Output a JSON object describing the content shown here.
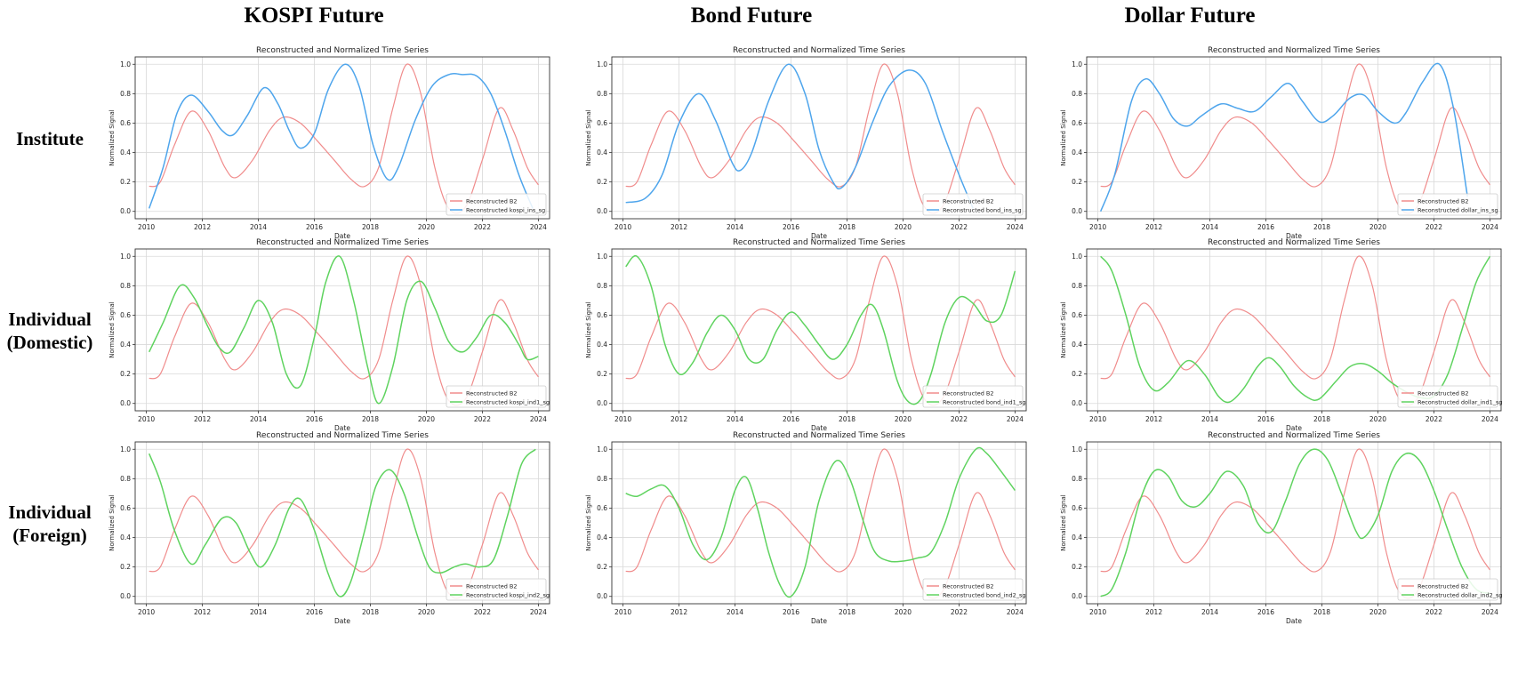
{
  "column_titles": [
    "KOSPI Future",
    "Bond Future",
    "Dollar Future"
  ],
  "row_labels": [
    {
      "line1": "Institute",
      "line2": ""
    },
    {
      "line1": "Individual",
      "line2": "(Domestic)"
    },
    {
      "line1": "Individual",
      "line2": "(Foreign)"
    }
  ],
  "colors": {
    "b2": "#f08c8c",
    "institute": "#4ea5ec",
    "individual": "#5fd35f"
  },
  "shared": {
    "title": "Reconstructed and Normalized Time Series",
    "xlabel": "Date",
    "ylabel": "Normalized Signal",
    "xticks": [
      2010,
      2012,
      2014,
      2016,
      2018,
      2020,
      2022,
      2024
    ],
    "yticks": [
      0.0,
      0.2,
      0.4,
      0.6,
      0.8,
      1.0
    ],
    "xlim": [
      2009.6,
      2024.4
    ],
    "ylim": [
      -0.05,
      1.05
    ],
    "b2_series": {
      "name": "Reconstructed B2",
      "x": [
        2010.1,
        2010.5,
        2011.0,
        2011.6,
        2012.2,
        2012.8,
        2013.2,
        2013.8,
        2014.4,
        2014.9,
        2015.5,
        2016.1,
        2016.7,
        2017.3,
        2017.8,
        2018.3,
        2018.8,
        2019.3,
        2019.8,
        2020.3,
        2020.8,
        2021.4,
        2022.0,
        2022.6,
        2023.1,
        2023.6,
        2024.0
      ],
      "y": [
        0.17,
        0.2,
        0.45,
        0.68,
        0.55,
        0.3,
        0.23,
        0.35,
        0.55,
        0.64,
        0.6,
        0.48,
        0.35,
        0.22,
        0.17,
        0.3,
        0.7,
        1.0,
        0.8,
        0.3,
        0.02,
        0.03,
        0.35,
        0.7,
        0.55,
        0.3,
        0.18
      ]
    }
  },
  "chart_data": [
    {
      "type": "line",
      "row": 0,
      "col": 0,
      "title": "Reconstructed and Normalized Time Series",
      "xlabel": "Date",
      "ylabel": "Normalized Signal",
      "legend": "lower right",
      "series": [
        {
          "name": "Reconstructed B2",
          "ref": "b2"
        },
        {
          "name": "Reconstructed kospi_ins_sg",
          "color": "institute",
          "x": [
            2010.1,
            2010.6,
            2011.1,
            2011.6,
            2012.2,
            2012.7,
            2013.1,
            2013.6,
            2014.2,
            2014.7,
            2015.1,
            2015.5,
            2016.0,
            2016.5,
            2017.1,
            2017.6,
            2018.1,
            2018.6,
            2019.0,
            2019.6,
            2020.2,
            2020.8,
            2021.3,
            2021.8,
            2022.3,
            2022.8,
            2023.3,
            2023.8
          ],
          "y": [
            0.02,
            0.3,
            0.67,
            0.79,
            0.68,
            0.55,
            0.52,
            0.65,
            0.84,
            0.73,
            0.55,
            0.43,
            0.53,
            0.83,
            1.0,
            0.85,
            0.45,
            0.22,
            0.3,
            0.62,
            0.85,
            0.93,
            0.93,
            0.92,
            0.8,
            0.55,
            0.25,
            0.02
          ]
        }
      ]
    },
    {
      "type": "line",
      "row": 0,
      "col": 1,
      "title": "Reconstructed and Normalized Time Series",
      "xlabel": "Date",
      "ylabel": "Normalized Signal",
      "legend": "lower right",
      "series": [
        {
          "name": "Reconstructed B2",
          "ref": "b2"
        },
        {
          "name": "Reconstructed bond_ins_sg",
          "color": "institute",
          "x": [
            2010.1,
            2010.8,
            2011.4,
            2012.0,
            2012.7,
            2013.3,
            2013.9,
            2014.2,
            2014.6,
            2015.2,
            2015.9,
            2016.5,
            2017.0,
            2017.5,
            2017.8,
            2018.3,
            2018.9,
            2019.5,
            2020.2,
            2020.8,
            2021.4,
            2022.0,
            2022.5
          ],
          "y": [
            0.06,
            0.09,
            0.25,
            0.6,
            0.8,
            0.62,
            0.33,
            0.28,
            0.4,
            0.75,
            1.0,
            0.8,
            0.42,
            0.2,
            0.16,
            0.3,
            0.6,
            0.85,
            0.96,
            0.87,
            0.55,
            0.25,
            0.02
          ]
        }
      ]
    },
    {
      "type": "line",
      "row": 0,
      "col": 2,
      "title": "Reconstructed and Normalized Time Series",
      "xlabel": "Date",
      "ylabel": "Normalized Signal",
      "legend": "lower right",
      "series": [
        {
          "name": "Reconstructed B2",
          "ref": "b2"
        },
        {
          "name": "Reconstructed dollar_ins_sg",
          "color": "institute",
          "x": [
            2010.1,
            2010.6,
            2011.2,
            2011.7,
            2012.2,
            2012.7,
            2013.2,
            2013.7,
            2014.4,
            2015.0,
            2015.6,
            2016.2,
            2016.8,
            2017.3,
            2017.9,
            2018.4,
            2019.0,
            2019.5,
            2020.0,
            2020.6,
            2021.0,
            2021.6,
            2022.2,
            2022.7,
            2023.2
          ],
          "y": [
            0.0,
            0.25,
            0.75,
            0.9,
            0.8,
            0.63,
            0.58,
            0.65,
            0.73,
            0.7,
            0.68,
            0.78,
            0.87,
            0.75,
            0.61,
            0.65,
            0.77,
            0.79,
            0.68,
            0.6,
            0.67,
            0.88,
            1.0,
            0.7,
            0.1
          ]
        }
      ]
    },
    {
      "type": "line",
      "row": 1,
      "col": 0,
      "title": "Reconstructed and Normalized Time Series",
      "xlabel": "Date",
      "ylabel": "Normalized Signal",
      "legend": "lower right",
      "series": [
        {
          "name": "Reconstructed B2",
          "ref": "b2"
        },
        {
          "name": "Reconstructed kospi_ind1_sg",
          "color": "individual",
          "x": [
            2010.1,
            2010.6,
            2011.2,
            2011.7,
            2012.2,
            2012.6,
            2013.0,
            2013.5,
            2014.0,
            2014.5,
            2015.0,
            2015.5,
            2016.0,
            2016.4,
            2016.9,
            2017.4,
            2017.9,
            2018.3,
            2018.8,
            2019.3,
            2019.8,
            2020.3,
            2020.8,
            2021.3,
            2021.8,
            2022.3,
            2022.8,
            2023.3,
            2023.6,
            2024.0
          ],
          "y": [
            0.35,
            0.55,
            0.8,
            0.72,
            0.52,
            0.38,
            0.35,
            0.52,
            0.7,
            0.55,
            0.2,
            0.12,
            0.45,
            0.82,
            1.0,
            0.7,
            0.25,
            0.0,
            0.25,
            0.7,
            0.83,
            0.65,
            0.42,
            0.35,
            0.45,
            0.6,
            0.55,
            0.4,
            0.3,
            0.32
          ]
        }
      ]
    },
    {
      "type": "line",
      "row": 1,
      "col": 1,
      "title": "Reconstructed and Normalized Time Series",
      "xlabel": "Date",
      "ylabel": "Normalized Signal",
      "legend": "lower right",
      "series": [
        {
          "name": "Reconstructed B2",
          "ref": "b2"
        },
        {
          "name": "Reconstructed bond_ind1_sg",
          "color": "individual",
          "x": [
            2010.1,
            2010.5,
            2011.0,
            2011.5,
            2012.0,
            2012.5,
            2013.0,
            2013.5,
            2014.0,
            2014.5,
            2015.0,
            2015.5,
            2016.0,
            2016.5,
            2017.0,
            2017.5,
            2018.0,
            2018.5,
            2018.9,
            2019.3,
            2019.8,
            2020.2,
            2020.6,
            2021.0,
            2021.5,
            2022.0,
            2022.5,
            2023.0,
            2023.5,
            2024.0
          ],
          "y": [
            0.93,
            1.0,
            0.8,
            0.4,
            0.2,
            0.28,
            0.48,
            0.6,
            0.5,
            0.3,
            0.3,
            0.5,
            0.62,
            0.53,
            0.4,
            0.3,
            0.4,
            0.6,
            0.67,
            0.5,
            0.15,
            0.01,
            0.02,
            0.2,
            0.55,
            0.72,
            0.68,
            0.56,
            0.6,
            0.9
          ]
        }
      ]
    },
    {
      "type": "line",
      "row": 1,
      "col": 2,
      "title": "Reconstructed and Normalized Time Series",
      "xlabel": "Date",
      "ylabel": "Normalized Signal",
      "legend": "lower right",
      "series": [
        {
          "name": "Reconstructed B2",
          "ref": "b2"
        },
        {
          "name": "Reconstructed dollar_ind1_sg",
          "color": "individual",
          "x": [
            2010.1,
            2010.5,
            2011.0,
            2011.5,
            2012.0,
            2012.5,
            2013.2,
            2013.8,
            2014.3,
            2014.7,
            2015.2,
            2015.7,
            2016.1,
            2016.5,
            2017.0,
            2017.5,
            2017.9,
            2018.5,
            2019.0,
            2019.5,
            2020.0,
            2020.5,
            2021.0,
            2021.5,
            2022.0,
            2022.5,
            2023.0,
            2023.5,
            2024.0
          ],
          "y": [
            1.0,
            0.9,
            0.6,
            0.25,
            0.09,
            0.14,
            0.29,
            0.2,
            0.05,
            0.01,
            0.1,
            0.25,
            0.31,
            0.25,
            0.12,
            0.04,
            0.03,
            0.15,
            0.25,
            0.27,
            0.22,
            0.14,
            0.08,
            0.04,
            0.05,
            0.2,
            0.5,
            0.82,
            1.0
          ]
        }
      ]
    },
    {
      "type": "line",
      "row": 2,
      "col": 0,
      "title": "Reconstructed and Normalized Time Series",
      "xlabel": "Date",
      "ylabel": "Normalized Signal",
      "legend": "lower right",
      "series": [
        {
          "name": "Reconstructed B2",
          "ref": "b2"
        },
        {
          "name": "Reconstructed kospi_ind2_sg",
          "color": "individual",
          "x": [
            2010.1,
            2010.5,
            2011.0,
            2011.6,
            2012.1,
            2012.7,
            2013.2,
            2013.7,
            2014.1,
            2014.6,
            2015.1,
            2015.5,
            2016.0,
            2016.5,
            2016.9,
            2017.3,
            2017.8,
            2018.2,
            2018.7,
            2019.2,
            2019.7,
            2020.1,
            2020.5,
            2021.0,
            2021.4,
            2021.9,
            2022.4,
            2022.9,
            2023.4,
            2023.9
          ],
          "y": [
            0.97,
            0.78,
            0.45,
            0.22,
            0.35,
            0.53,
            0.5,
            0.3,
            0.2,
            0.35,
            0.6,
            0.66,
            0.45,
            0.15,
            0.0,
            0.1,
            0.45,
            0.75,
            0.86,
            0.7,
            0.4,
            0.2,
            0.16,
            0.2,
            0.22,
            0.2,
            0.25,
            0.55,
            0.9,
            1.0
          ]
        }
      ]
    },
    {
      "type": "line",
      "row": 2,
      "col": 1,
      "title": "Reconstructed and Normalized Time Series",
      "xlabel": "Date",
      "ylabel": "Normalized Signal",
      "legend": "lower right",
      "series": [
        {
          "name": "Reconstructed B2",
          "ref": "b2"
        },
        {
          "name": "Reconstructed bond_ind2_sg",
          "color": "individual",
          "x": [
            2010.1,
            2010.5,
            2011.0,
            2011.5,
            2012.0,
            2012.5,
            2013.0,
            2013.5,
            2014.0,
            2014.4,
            2014.8,
            2015.2,
            2015.6,
            2016.0,
            2016.5,
            2017.0,
            2017.6,
            2018.1,
            2018.6,
            2019.0,
            2019.5,
            2020.0,
            2020.5,
            2021.0,
            2021.5,
            2022.0,
            2022.6,
            2023.0,
            2023.5,
            2024.0
          ],
          "y": [
            0.7,
            0.68,
            0.73,
            0.75,
            0.6,
            0.35,
            0.25,
            0.4,
            0.72,
            0.81,
            0.6,
            0.3,
            0.08,
            0.0,
            0.2,
            0.65,
            0.92,
            0.8,
            0.5,
            0.3,
            0.24,
            0.24,
            0.26,
            0.3,
            0.5,
            0.8,
            1.0,
            0.97,
            0.85,
            0.72
          ]
        }
      ]
    },
    {
      "type": "line",
      "row": 2,
      "col": 2,
      "title": "Reconstructed and Normalized Time Series",
      "xlabel": "Date",
      "ylabel": "Normalized Signal",
      "legend": "lower right",
      "series": [
        {
          "name": "Reconstructed B2",
          "ref": "b2"
        },
        {
          "name": "Reconstructed dollar_ind2_sg",
          "color": "individual",
          "x": [
            2010.1,
            2010.5,
            2011.0,
            2011.5,
            2012.0,
            2012.5,
            2013.0,
            2013.5,
            2014.0,
            2014.6,
            2015.2,
            2015.7,
            2016.2,
            2016.7,
            2017.2,
            2017.7,
            2018.2,
            2018.7,
            2019.2,
            2019.5,
            2020.0,
            2020.5,
            2021.0,
            2021.5,
            2022.0,
            2022.5,
            2023.0,
            2023.5,
            2024.0
          ],
          "y": [
            0.0,
            0.05,
            0.3,
            0.65,
            0.85,
            0.82,
            0.65,
            0.61,
            0.7,
            0.85,
            0.75,
            0.5,
            0.44,
            0.65,
            0.9,
            1.0,
            0.93,
            0.7,
            0.45,
            0.4,
            0.55,
            0.85,
            0.97,
            0.92,
            0.72,
            0.45,
            0.2,
            0.05,
            0.02
          ]
        }
      ]
    }
  ]
}
